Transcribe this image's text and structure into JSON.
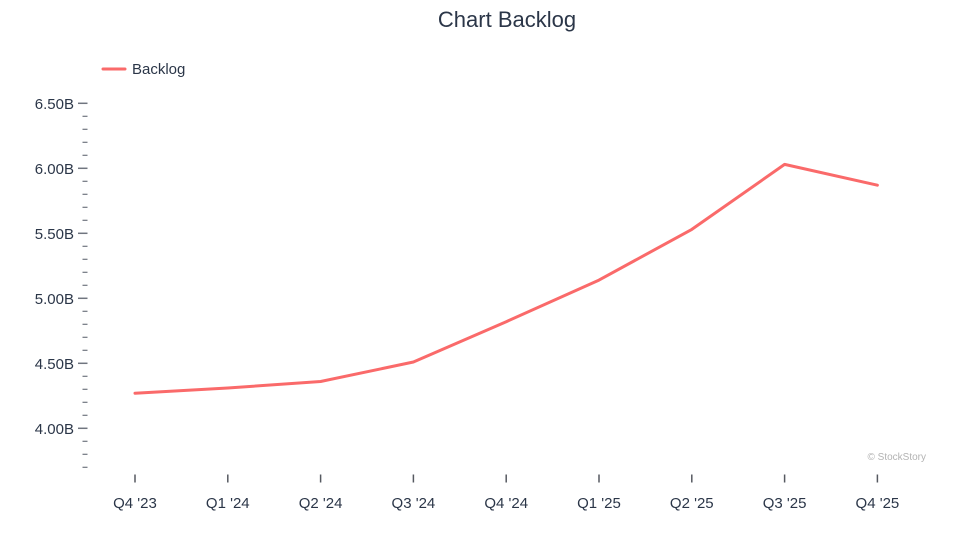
{
  "title": "Chart Backlog",
  "legend": {
    "label": "Backlog"
  },
  "watermark": "© StockStory",
  "colors": {
    "line": "#fa6a6a",
    "text": "#2b3648",
    "major_tick": "#70757f",
    "minor_tick": "#70757f",
    "x_tick": "#555960",
    "watermark": "#b3b3b3"
  },
  "chart_data": {
    "type": "line",
    "title": "Chart Backlog",
    "categories": [
      "Q4 '23",
      "Q1 '24",
      "Q2 '24",
      "Q3 '24",
      "Q4 '24",
      "Q1 '25",
      "Q2 '25",
      "Q3 '25",
      "Q4 '25"
    ],
    "series": [
      {
        "name": "Backlog",
        "values": [
          4.27,
          4.31,
          4.36,
          4.51,
          4.82,
          5.14,
          5.53,
          6.03,
          5.87
        ]
      }
    ],
    "unit": "B",
    "y_major_ticks": [
      4.0,
      4.5,
      5.0,
      5.5,
      6.0,
      6.5
    ],
    "y_tick_labels": [
      "4.00B",
      "4.50B",
      "5.00B",
      "5.50B",
      "6.00B",
      "6.50B"
    ],
    "y_minor_step": 0.1,
    "ylim": [
      3.7,
      6.5
    ],
    "grid": false,
    "axis_lines": false,
    "legend_position": "top-left"
  }
}
